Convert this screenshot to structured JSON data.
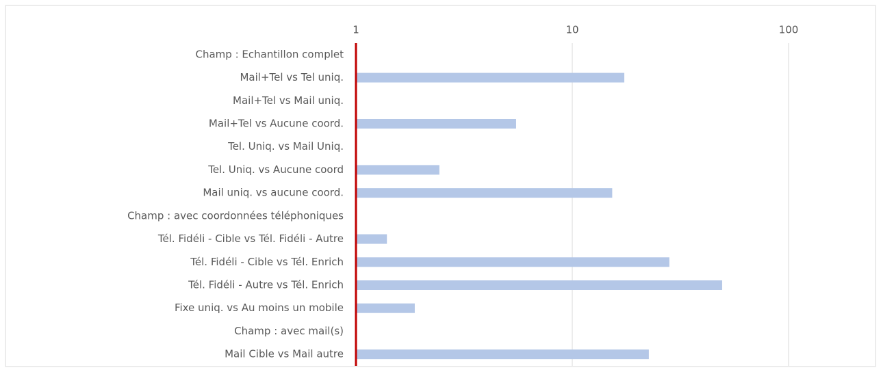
{
  "chart_data": {
    "type": "barh",
    "categories": [
      "Champ : Echantillon complet",
      "Mail+Tel vs Tel uniq.",
      "Mail+Tel vs Mail uniq.",
      "Mail+Tel vs Aucune coord.",
      "Tel. Uniq. vs Mail Uniq.",
      "Tel. Uniq. vs Aucune coord",
      "Mail uniq. vs aucune coord.",
      "Champ : avec coordonnées téléphoniques",
      "Tél. Fidéli - Cible vs Tél. Fidéli - Autre",
      "Tél. Fidéli - Cible vs Tél. Enrich",
      "Tél. Fidéli - Autre vs Tél. Enrich",
      "Fixe uniq. vs Au moins un mobile",
      "Champ : avec mail(s)",
      "Mail Cible vs Mail autre"
    ],
    "values": [
      null,
      17.4,
      null,
      5.5,
      null,
      2.43,
      15.3,
      null,
      1.39,
      28.1,
      49.3,
      1.87,
      null,
      22.6
    ],
    "color": "#b4c7e7",
    "axis_color": "#c00000",
    "xscale": "log",
    "xlim": [
      1,
      100
    ],
    "xticks": [
      1,
      10,
      100
    ],
    "grid": true
  }
}
